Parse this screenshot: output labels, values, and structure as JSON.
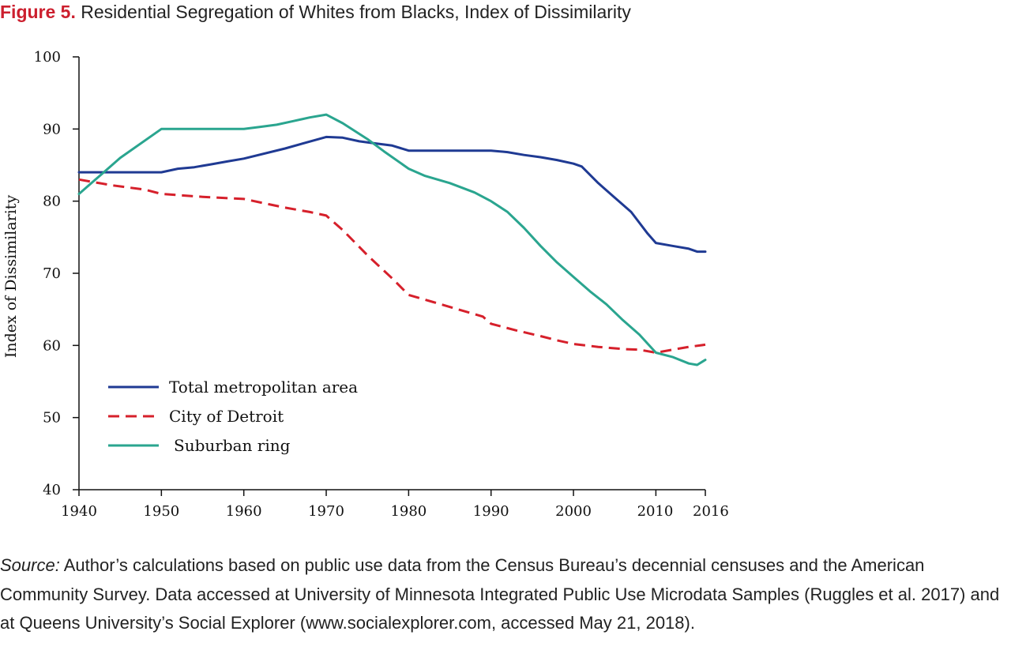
{
  "figure": {
    "label": "Figure 5.",
    "title": "Residential Segregation of Whites from Blacks, Index of Dissimilarity"
  },
  "source": {
    "label": "Source:",
    "text": "Author’s calculations based on public use data from the Census Bureau’s decennial censuses and the American Community Survey. Data accessed at University of Minnesota Integrated Public Use Microdata Samples (Ruggles et al. 2017) and at Queens University’s Social Explorer (www.socialexplorer.com, accessed May 21, 2018)."
  },
  "chart_data": {
    "type": "line",
    "title": "Residential Segregation of Whites from Blacks, Index of Dissimilarity",
    "xlabel": "",
    "ylabel": "Index of Dissimilarity",
    "xlim": [
      1940,
      2016
    ],
    "ylim": [
      40,
      100
    ],
    "x_ticks": [
      "1940",
      "1950",
      "1960",
      "1970",
      "1980",
      "1990",
      "2000",
      "2010",
      "2016"
    ],
    "y_ticks": [
      "40",
      "50",
      "60",
      "70",
      "80",
      "90",
      "100"
    ],
    "grid": false,
    "legend_position": "bottom-left",
    "series": [
      {
        "name": "Total metropolitan area",
        "color": "#1f3a93",
        "dash": "solid",
        "points": [
          [
            1940,
            84
          ],
          [
            1950,
            84
          ],
          [
            1952,
            84.5
          ],
          [
            1954,
            84.7
          ],
          [
            1956,
            85.1
          ],
          [
            1958,
            85.5
          ],
          [
            1960,
            85.9
          ],
          [
            1965,
            87.3
          ],
          [
            1970,
            88.9
          ],
          [
            1972,
            88.8
          ],
          [
            1974,
            88.3
          ],
          [
            1976,
            88.0
          ],
          [
            1978,
            87.7
          ],
          [
            1980,
            87
          ],
          [
            1985,
            87
          ],
          [
            1990,
            87
          ],
          [
            1992,
            86.8
          ],
          [
            1994,
            86.4
          ],
          [
            1996,
            86.1
          ],
          [
            1998,
            85.7
          ],
          [
            2000,
            85.2
          ],
          [
            2001,
            84.8
          ],
          [
            2003,
            82.5
          ],
          [
            2005,
            80.5
          ],
          [
            2007,
            78.5
          ],
          [
            2009,
            75.5
          ],
          [
            2010,
            74.2
          ],
          [
            2012,
            73.8
          ],
          [
            2014,
            73.4
          ],
          [
            2015,
            73.0
          ],
          [
            2016,
            73.0
          ]
        ]
      },
      {
        "name": "City of Detroit",
        "color": "#d6202b",
        "dash": "dashed",
        "points": [
          [
            1940,
            83
          ],
          [
            1944,
            82.2
          ],
          [
            1948,
            81.6
          ],
          [
            1950,
            81
          ],
          [
            1955,
            80.6
          ],
          [
            1960,
            80.3
          ],
          [
            1965,
            79.1
          ],
          [
            1968,
            78.5
          ],
          [
            1970,
            78
          ],
          [
            1972,
            76
          ],
          [
            1975,
            72.5
          ],
          [
            1978,
            69.3
          ],
          [
            1980,
            67
          ],
          [
            1983,
            66
          ],
          [
            1986,
            65
          ],
          [
            1989,
            64
          ],
          [
            1990,
            63
          ],
          [
            1993,
            62.1
          ],
          [
            1996,
            61.3
          ],
          [
            1998,
            60.7
          ],
          [
            2000,
            60.2
          ],
          [
            2003,
            59.8
          ],
          [
            2006,
            59.5
          ],
          [
            2008,
            59.4
          ],
          [
            2010,
            59
          ],
          [
            2012,
            59.4
          ],
          [
            2014,
            59.8
          ],
          [
            2016,
            60.1
          ]
        ]
      },
      {
        "name": "Suburban ring",
        "color": "#2aa58f",
        "dash": "solid",
        "points": [
          [
            1940,
            81
          ],
          [
            1942,
            83
          ],
          [
            1945,
            86
          ],
          [
            1950,
            90
          ],
          [
            1955,
            90
          ],
          [
            1960,
            90
          ],
          [
            1962,
            90.3
          ],
          [
            1964,
            90.6
          ],
          [
            1966,
            91.1
          ],
          [
            1968,
            91.6
          ],
          [
            1970,
            92
          ],
          [
            1972,
            90.8
          ],
          [
            1975,
            88.6
          ],
          [
            1977,
            86.9
          ],
          [
            1980,
            84.5
          ],
          [
            1982,
            83.5
          ],
          [
            1985,
            82.5
          ],
          [
            1988,
            81.2
          ],
          [
            1990,
            80
          ],
          [
            1992,
            78.5
          ],
          [
            1994,
            76.3
          ],
          [
            1996,
            73.8
          ],
          [
            1998,
            71.5
          ],
          [
            2000,
            69.5
          ],
          [
            2002,
            67.5
          ],
          [
            2004,
            65.7
          ],
          [
            2006,
            63.5
          ],
          [
            2008,
            61.5
          ],
          [
            2010,
            59
          ],
          [
            2012,
            58.4
          ],
          [
            2014,
            57.5
          ],
          [
            2015,
            57.3
          ],
          [
            2016,
            58
          ]
        ]
      }
    ]
  }
}
